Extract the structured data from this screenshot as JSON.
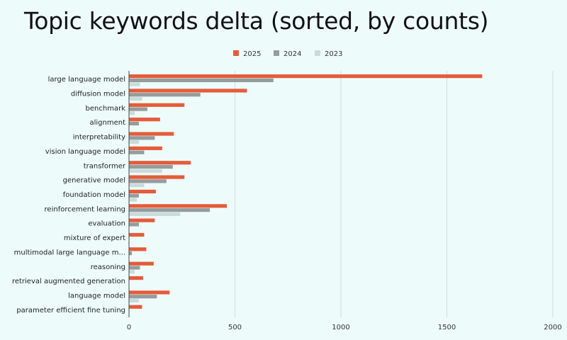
{
  "chart_data": {
    "type": "bar",
    "orientation": "horizontal",
    "title": "Topic keywords delta (sorted, by counts)",
    "categories": [
      "large language model",
      "diffusion model",
      "benchmark",
      "alignment",
      "interpretability",
      "vision language model",
      "transformer",
      "generative model",
      "foundation model",
      "reinforcement learning",
      "evaluation",
      "mixture of expert",
      "multimodal large language m...",
      "reasoning",
      "retrieval augmented generation",
      "language model",
      "parameter efficient fine tuning"
    ],
    "series": [
      {
        "name": "2025",
        "color": "#e45c3a",
        "values": [
          1665,
          555,
          260,
          145,
          210,
          155,
          290,
          260,
          125,
          460,
          120,
          70,
          80,
          115,
          65,
          190,
          60
        ]
      },
      {
        "name": "2024",
        "color": "#959c9c",
        "values": [
          680,
          335,
          85,
          45,
          120,
          70,
          205,
          175,
          45,
          380,
          45,
          0,
          12,
          50,
          0,
          130,
          0
        ]
      },
      {
        "name": "2023",
        "color": "#c9dcdb",
        "values": [
          50,
          60,
          25,
          0,
          45,
          0,
          155,
          70,
          35,
          240,
          0,
          0,
          0,
          25,
          0,
          45,
          0
        ]
      }
    ],
    "xlim": [
      0,
      2000
    ],
    "xticks": [
      "0",
      "500",
      "1000",
      "1500",
      "2000"
    ],
    "xticks_values": [
      0,
      500,
      1000,
      1500,
      2000
    ],
    "grid": true,
    "legend_position": "top"
  }
}
